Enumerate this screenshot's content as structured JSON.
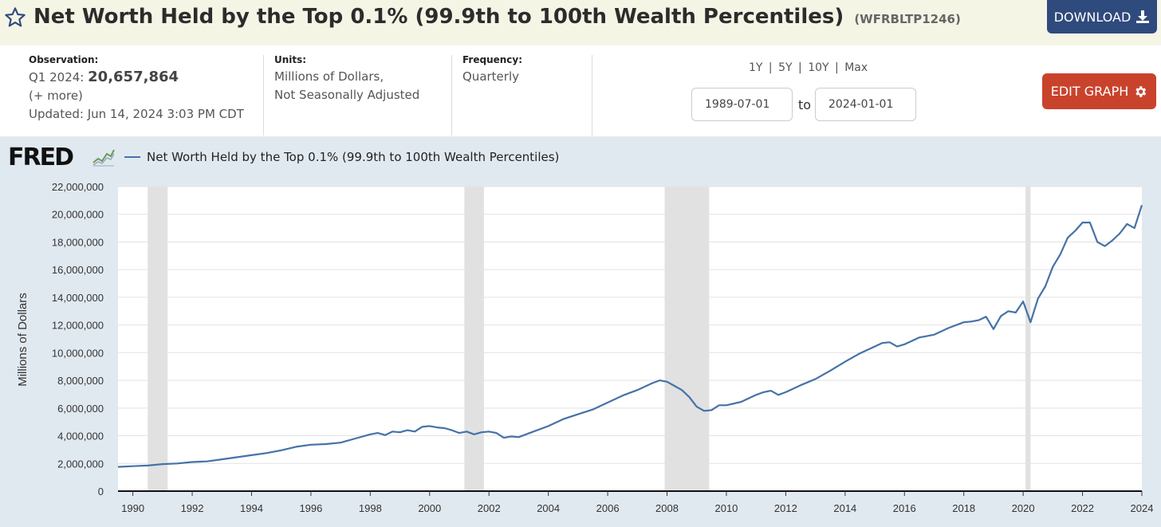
{
  "header": {
    "title": "Net Worth Held by the Top 0.1% (99.9th to 100th Wealth Percentiles)",
    "series_id": "(WFRBLTP1246)",
    "download_label": "DOWNLOAD",
    "star_icon": "star-outline-icon",
    "download_icon": "download-icon"
  },
  "info": {
    "observation_label": "Observation:",
    "observation_period": "Q1 2024:",
    "observation_value": "20,657,864",
    "more_label": "(+ more)",
    "updated_label": "Updated:",
    "updated_value": "Jun 14, 2024 3:03 PM CDT",
    "units_label": "Units:",
    "units_line1": "Millions of Dollars,",
    "units_line2": "Not Seasonally Adjusted",
    "frequency_label": "Frequency:",
    "frequency_value": "Quarterly"
  },
  "controls": {
    "range_links": [
      "1Y",
      "5Y",
      "10Y",
      "Max"
    ],
    "range_separator": "|",
    "start_date": "1989-07-01",
    "to_label": "to",
    "end_date": "2024-01-01",
    "edit_label": "EDIT GRAPH",
    "edit_icon": "gear-icon"
  },
  "branding": {
    "logo_text": "FRED",
    "logo_icon": "sparkline-icon"
  },
  "colors": {
    "line": "#4572a7",
    "recession": "#e1e1e1",
    "edit_button": "#c9432c",
    "download_button": "#2f4a7c"
  },
  "chart_data": {
    "type": "line",
    "title": "Net Worth Held by the Top 0.1% (99.9th to 100th Wealth Percentiles)",
    "ylabel": "Millions of Dollars",
    "xlabel": "",
    "ylim": [
      0,
      22000000
    ],
    "xlim": [
      1989.5,
      2024.0
    ],
    "y_ticks": [
      0,
      2000000,
      4000000,
      6000000,
      8000000,
      10000000,
      12000000,
      14000000,
      16000000,
      18000000,
      20000000,
      22000000
    ],
    "y_tick_labels": [
      "0",
      "2,000,000",
      "4,000,000",
      "6,000,000",
      "8,000,000",
      "10,000,000",
      "12,000,000",
      "14,000,000",
      "16,000,000",
      "18,000,000",
      "20,000,000",
      "22,000,000"
    ],
    "x_ticks": [
      1990,
      1992,
      1994,
      1996,
      1998,
      2000,
      2002,
      2004,
      2006,
      2008,
      2010,
      2012,
      2014,
      2016,
      2018,
      2020,
      2022,
      2024
    ],
    "x_tick_labels": [
      "1990",
      "1992",
      "1994",
      "1996",
      "1998",
      "2000",
      "2002",
      "2004",
      "2006",
      "2008",
      "2010",
      "2012",
      "2014",
      "2016",
      "2018",
      "2020",
      "2022",
      "2024"
    ],
    "recessions": [
      [
        1990.5,
        1991.17
      ],
      [
        2001.17,
        2001.83
      ],
      [
        2007.92,
        2009.42
      ],
      [
        2020.08,
        2020.25
      ]
    ],
    "grid": true,
    "series": [
      {
        "name": "Net Worth Held by the Top 0.1% (99.9th to 100th Wealth Percentiles)",
        "x": [
          1989.5,
          1990.0,
          1990.5,
          1991.0,
          1991.5,
          1992.0,
          1992.5,
          1993.0,
          1993.5,
          1994.0,
          1994.5,
          1995.0,
          1995.5,
          1996.0,
          1996.5,
          1997.0,
          1997.5,
          1998.0,
          1998.25,
          1998.5,
          1998.75,
          1999.0,
          1999.25,
          1999.5,
          1999.75,
          2000.0,
          2000.25,
          2000.5,
          2000.75,
          2001.0,
          2001.25,
          2001.5,
          2001.75,
          2002.0,
          2002.25,
          2002.5,
          2002.75,
          2003.0,
          2003.5,
          2004.0,
          2004.5,
          2005.0,
          2005.5,
          2006.0,
          2006.5,
          2007.0,
          2007.5,
          2007.75,
          2008.0,
          2008.25,
          2008.5,
          2008.75,
          2009.0,
          2009.25,
          2009.5,
          2009.75,
          2010.0,
          2010.5,
          2011.0,
          2011.25,
          2011.5,
          2011.75,
          2012.0,
          2012.5,
          2013.0,
          2013.5,
          2014.0,
          2014.5,
          2015.0,
          2015.25,
          2015.5,
          2015.75,
          2016.0,
          2016.5,
          2017.0,
          2017.5,
          2018.0,
          2018.25,
          2018.5,
          2018.75,
          2019.0,
          2019.25,
          2019.5,
          2019.75,
          2020.0,
          2020.25,
          2020.5,
          2020.75,
          2021.0,
          2021.25,
          2021.5,
          2021.75,
          2022.0,
          2022.25,
          2022.5,
          2022.75,
          2023.0,
          2023.25,
          2023.5,
          2023.75,
          2024.0
        ],
        "values": [
          1750000,
          1800000,
          1850000,
          1950000,
          2000000,
          2100000,
          2150000,
          2300000,
          2450000,
          2600000,
          2750000,
          2950000,
          3200000,
          3350000,
          3400000,
          3500000,
          3800000,
          4100000,
          4200000,
          4050000,
          4300000,
          4250000,
          4400000,
          4300000,
          4650000,
          4700000,
          4600000,
          4550000,
          4400000,
          4200000,
          4300000,
          4100000,
          4250000,
          4300000,
          4200000,
          3850000,
          3950000,
          3900000,
          4300000,
          4700000,
          5200000,
          5550000,
          5900000,
          6400000,
          6900000,
          7300000,
          7800000,
          8000000,
          7900000,
          7600000,
          7300000,
          6800000,
          6100000,
          5800000,
          5850000,
          6200000,
          6200000,
          6450000,
          6950000,
          7150000,
          7250000,
          6950000,
          7150000,
          7650000,
          8100000,
          8700000,
          9350000,
          9950000,
          10450000,
          10700000,
          10750000,
          10450000,
          10600000,
          11100000,
          11300000,
          11800000,
          12200000,
          12250000,
          12350000,
          12600000,
          11700000,
          12650000,
          13000000,
          12900000,
          13700000,
          12200000,
          13900000,
          14800000,
          16200000,
          17100000,
          18300000,
          18800000,
          19400000,
          19400000,
          18000000,
          17700000,
          18100000,
          18600000,
          19300000,
          19000000,
          20657864
        ]
      }
    ]
  }
}
